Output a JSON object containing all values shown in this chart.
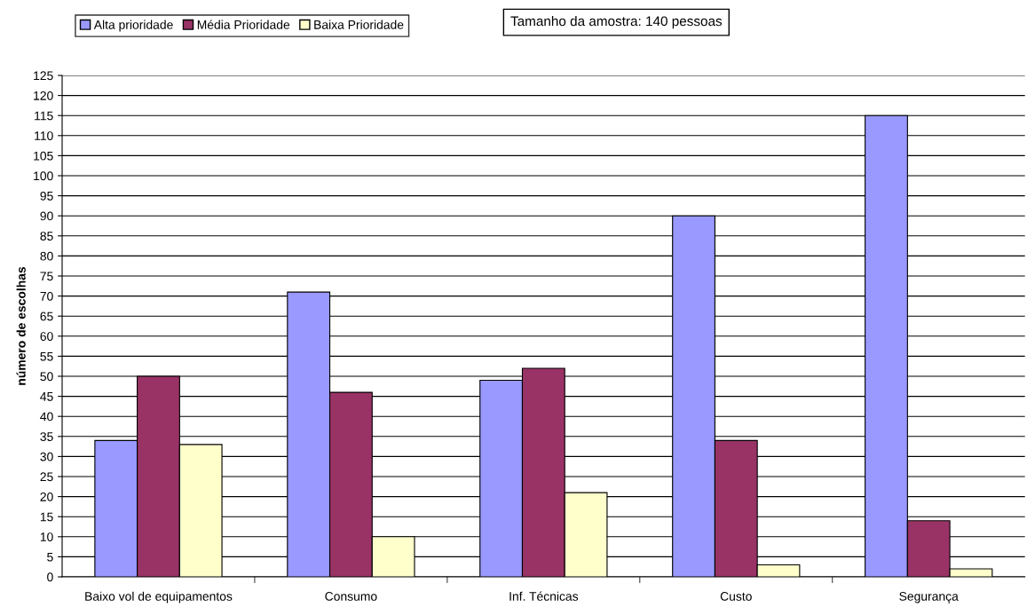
{
  "chart_data": {
    "type": "bar",
    "ylabel": "número de escolhas",
    "categories": [
      "Baixo vol de equipamentos",
      "Consumo",
      "Inf. Técnicas",
      "Custo",
      "Segurança"
    ],
    "series": [
      {
        "name": "Alta prioridade",
        "color": "#9999ff",
        "values": [
          34,
          71,
          49,
          90,
          115
        ]
      },
      {
        "name": "Média Prioridade",
        "color": "#993366",
        "values": [
          50,
          46,
          52,
          34,
          14
        ]
      },
      {
        "name": "Baixa Prioridade",
        "color": "#ffffcc",
        "values": [
          33,
          10,
          21,
          3,
          2
        ]
      }
    ],
    "ylim": [
      0,
      125
    ],
    "yticks": [
      0,
      5,
      10,
      15,
      20,
      25,
      30,
      35,
      40,
      45,
      50,
      55,
      60,
      65,
      70,
      75,
      80,
      85,
      90,
      95,
      100,
      105,
      110,
      115,
      120,
      125
    ],
    "grid": "y",
    "legend": "top left",
    "annotations": [
      "Tamanho da amostra: 140 pessoas"
    ]
  }
}
